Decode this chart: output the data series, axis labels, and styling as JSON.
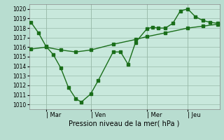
{
  "background_color": "#b8ddd0",
  "plot_bg_color": "#c8e8dc",
  "grid_color": "#99bbaa",
  "line_color": "#1a6e1a",
  "title": "Pression niveau de la mer( hPa )",
  "ylim": [
    1009.5,
    1020.5
  ],
  "yticks": [
    1010,
    1011,
    1012,
    1013,
    1014,
    1015,
    1016,
    1017,
    1018,
    1019,
    1020
  ],
  "xtick_labels": [
    "| Mar",
    "| Ven",
    "| Mer",
    "| Jeu"
  ],
  "xtick_positions": [
    0.08,
    0.32,
    0.62,
    0.84
  ],
  "series1_x": [
    0.0,
    0.04,
    0.08,
    0.12,
    0.16,
    0.2,
    0.24,
    0.27,
    0.32,
    0.36,
    0.44,
    0.48,
    0.52,
    0.56,
    0.62,
    0.65,
    0.68,
    0.72,
    0.76,
    0.8,
    0.84,
    0.88,
    0.92,
    0.96,
    1.0
  ],
  "series1_y": [
    1018.6,
    1017.5,
    1016.1,
    1015.2,
    1013.8,
    1011.8,
    1010.6,
    1010.25,
    1011.1,
    1012.5,
    1015.5,
    1015.5,
    1014.2,
    1016.5,
    1017.9,
    1018.1,
    1018.0,
    1018.0,
    1018.5,
    1019.8,
    1020.0,
    1019.2,
    1018.8,
    1018.6,
    1018.5
  ],
  "series2_x": [
    0.0,
    0.08,
    0.16,
    0.24,
    0.32,
    0.44,
    0.56,
    0.62,
    0.72,
    0.84,
    0.92,
    1.0
  ],
  "series2_y": [
    1015.8,
    1016.0,
    1015.7,
    1015.5,
    1015.7,
    1016.3,
    1016.8,
    1017.1,
    1017.5,
    1018.0,
    1018.2,
    1018.4
  ],
  "marker_size": 2.5,
  "linewidth": 1.0
}
